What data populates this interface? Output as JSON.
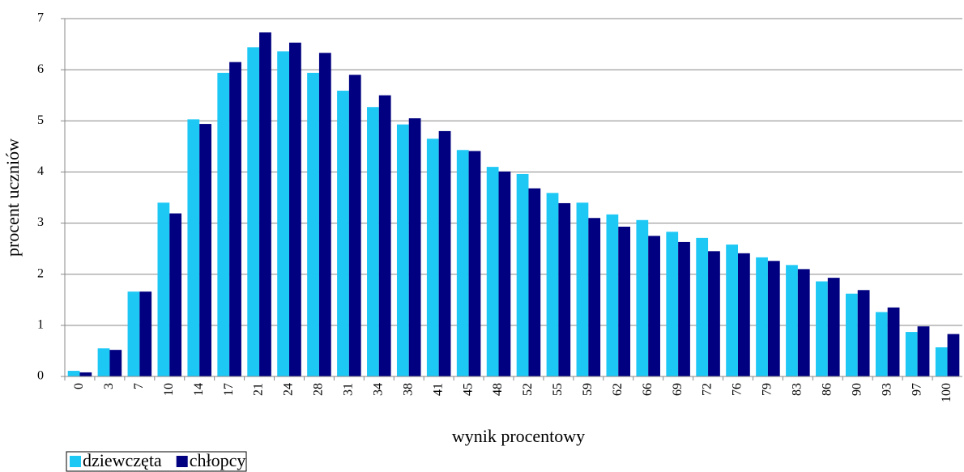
{
  "chart_data": {
    "type": "bar",
    "xlabel": "wynik procentowy",
    "ylabel": "procent uczniów",
    "categories": [
      "0",
      "3",
      "7",
      "10",
      "14",
      "17",
      "21",
      "24",
      "28",
      "31",
      "34",
      "38",
      "41",
      "45",
      "48",
      "52",
      "55",
      "59",
      "62",
      "66",
      "69",
      "72",
      "76",
      "79",
      "83",
      "86",
      "90",
      "93",
      "97",
      "100"
    ],
    "series": [
      {
        "name": "dziewczęta",
        "color": "#1ec8f5",
        "values": [
          0.11,
          0.55,
          1.66,
          3.4,
          5.03,
          5.94,
          6.44,
          6.36,
          5.94,
          5.59,
          5.27,
          4.93,
          4.65,
          4.43,
          4.1,
          3.96,
          3.59,
          3.4,
          3.17,
          3.06,
          2.83,
          2.71,
          2.58,
          2.33,
          2.18,
          1.86,
          1.62,
          1.26,
          0.87,
          0.57
        ]
      },
      {
        "name": "chłopcy",
        "color": "#000080",
        "values": [
          0.08,
          0.52,
          1.66,
          3.19,
          4.94,
          6.15,
          6.73,
          6.53,
          6.33,
          5.9,
          5.5,
          5.05,
          4.8,
          4.41,
          4.01,
          3.68,
          3.39,
          3.1,
          2.93,
          2.75,
          2.63,
          2.45,
          2.41,
          2.26,
          2.1,
          1.93,
          1.69,
          1.35,
          0.98,
          0.83
        ]
      }
    ],
    "ylim": [
      0,
      7
    ],
    "yticks": [
      0,
      1,
      2,
      3,
      4,
      5,
      6,
      7
    ],
    "grid": true,
    "legend": "bottom-left"
  }
}
